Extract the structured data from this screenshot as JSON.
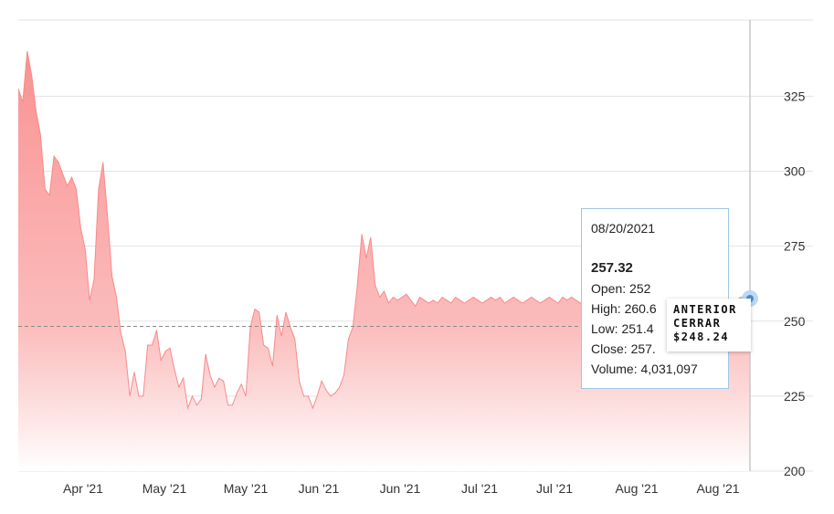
{
  "chart_data": {
    "type": "area",
    "ylim": [
      200,
      340
    ],
    "y_ticks": [
      200,
      225,
      250,
      275,
      300,
      325
    ],
    "x_tick_labels": [
      "Apr '21",
      "May '21",
      "May '21",
      "Jun '21",
      "Jun '21",
      "Jul '21",
      "Jul '21",
      "Aug '21",
      "Aug '21"
    ],
    "grid": true,
    "fill_color": "#fa8c8c",
    "reference_line": {
      "value": 248.24,
      "style": "dashed"
    },
    "x": [
      0,
      1,
      2,
      3,
      4,
      5,
      6,
      7,
      8,
      9,
      10,
      11,
      12,
      13,
      14,
      15,
      16,
      17,
      18,
      19,
      20,
      21,
      22,
      23,
      24,
      25,
      26,
      27,
      28,
      29,
      30,
      31,
      32,
      33,
      34,
      35,
      36,
      37,
      38,
      39,
      40,
      41,
      42,
      43,
      44,
      45,
      46,
      47,
      48,
      49,
      50,
      51,
      52,
      53,
      54,
      55,
      56,
      57,
      58,
      59,
      60,
      61,
      62,
      63,
      64,
      65,
      66,
      67,
      68,
      69,
      70,
      71,
      72,
      73,
      74,
      75,
      76,
      77,
      78,
      79,
      80,
      81,
      82,
      83,
      84,
      85,
      86,
      87,
      88,
      89,
      90,
      91,
      92,
      93,
      94,
      95,
      96,
      97,
      98,
      99,
      100,
      101,
      102,
      103,
      104,
      105,
      106,
      107,
      108,
      109,
      110,
      111,
      112,
      113,
      114,
      115,
      116,
      117,
      118,
      119,
      120,
      121,
      122,
      123,
      124,
      125,
      126,
      127,
      128,
      129,
      130,
      131,
      132,
      133,
      134,
      135,
      136,
      137,
      138,
      139,
      140,
      141,
      142,
      143,
      144,
      145,
      146,
      147,
      148,
      149,
      150,
      151,
      152,
      153,
      154,
      155,
      156,
      157,
      158,
      159,
      160,
      161,
      162,
      163,
      164
    ],
    "y": [
      327.5,
      323,
      340,
      332,
      320,
      312,
      294,
      292,
      305,
      303,
      299,
      295,
      298,
      294,
      281,
      274,
      257,
      264,
      294,
      303,
      285,
      265,
      258,
      246,
      240,
      225,
      233,
      225,
      225,
      242,
      242,
      247,
      237,
      240,
      241,
      234,
      228,
      231,
      221,
      225,
      222,
      224,
      239,
      232,
      228,
      231,
      230,
      222,
      222,
      226,
      229,
      225,
      248,
      254,
      253,
      242,
      241,
      235,
      252,
      245,
      253,
      248,
      244,
      230,
      225,
      225,
      221,
      225,
      230,
      227,
      225,
      226,
      228,
      232,
      244,
      248,
      262,
      279,
      271,
      278,
      262,
      258,
      260,
      256,
      258,
      257,
      258,
      259,
      257,
      255,
      258,
      257,
      256,
      257,
      256,
      258,
      257,
      256,
      258,
      257,
      256,
      257,
      258,
      257,
      256,
      257,
      258,
      257,
      258,
      256,
      257,
      258,
      257,
      256,
      257,
      258,
      257,
      256,
      257,
      258,
      257,
      256,
      258,
      257,
      258,
      257,
      256,
      257,
      258,
      257,
      256,
      257,
      258,
      257,
      256,
      257,
      258,
      257,
      256,
      258,
      257,
      256,
      257,
      258,
      257,
      256,
      257,
      258,
      257,
      256,
      258,
      257,
      256,
      257,
      258,
      257,
      256,
      257,
      258,
      257,
      256,
      257,
      258,
      257,
      257.32
    ]
  },
  "tooltip": {
    "date": "08/20/2021",
    "price": "257.32",
    "open": "Open: 252",
    "high": "High: 260.6",
    "low": "Low: 251.4",
    "close": "Close: 257.",
    "volume": "Volume: 4,031,097"
  },
  "prev_close": {
    "line1": "ANTERIOR",
    "line2": "CERRAR",
    "line3": "$248.24"
  }
}
